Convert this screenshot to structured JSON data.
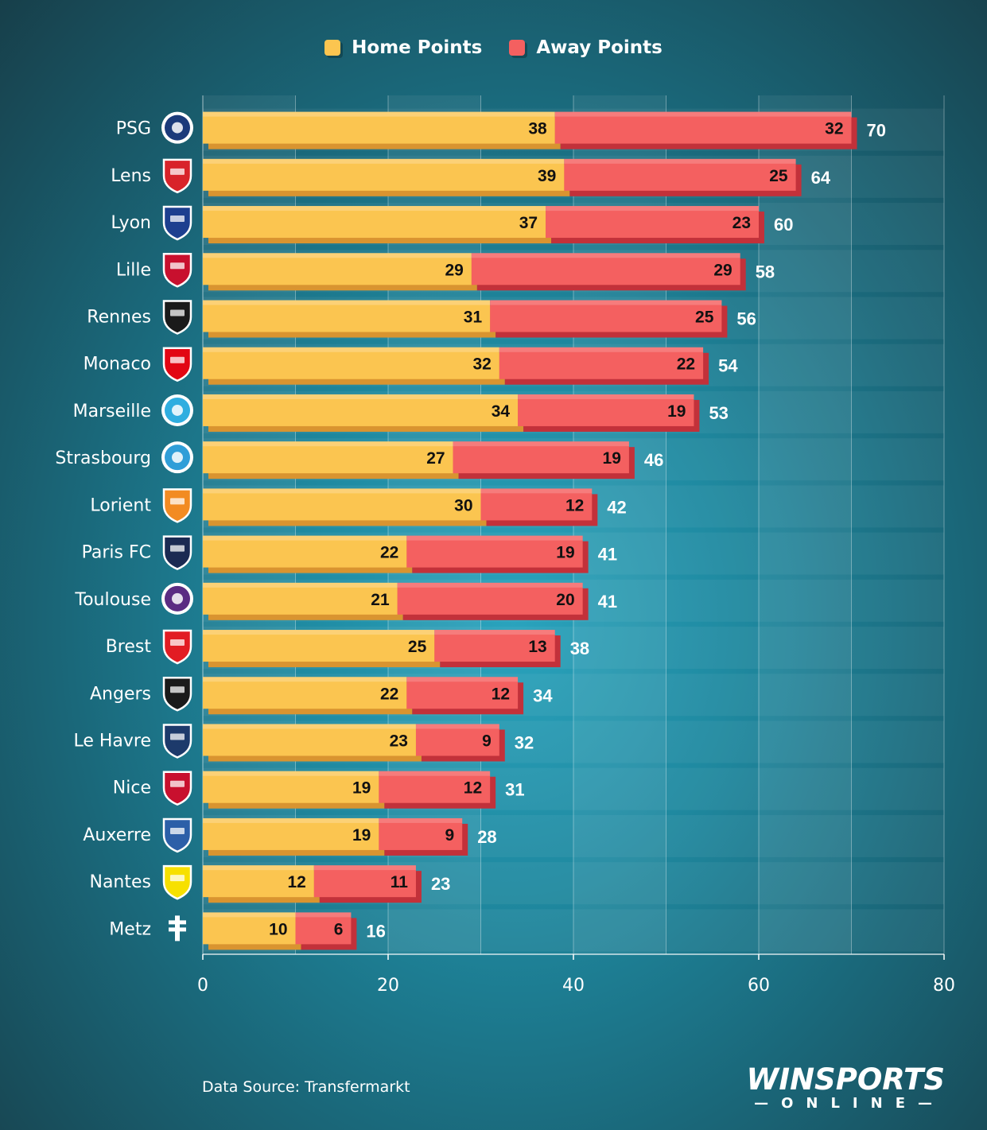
{
  "legend": {
    "home_label": "Home Points",
    "away_label": "Away Points"
  },
  "source": "Data Source: Transfermarkt",
  "brand": {
    "main": "WINSPORTS",
    "sub": "—ONLINE—"
  },
  "colors": {
    "home": "#fbc550",
    "home_shade": "#d99430",
    "away": "#f46060",
    "away_shade": "#c2313a",
    "text_dark": "#111111",
    "text_light": "#ffffff"
  },
  "chart_data": {
    "type": "bar",
    "orientation": "horizontal",
    "stacked": true,
    "categories": [
      "PSG",
      "Lens",
      "Lyon",
      "Lille",
      "Rennes",
      "Monaco",
      "Marseille",
      "Strasbourg",
      "Lorient",
      "Paris FC",
      "Toulouse",
      "Brest",
      "Angers",
      "Le Havre",
      "Nice",
      "Auxerre",
      "Nantes",
      "Metz"
    ],
    "series": [
      {
        "name": "Home Points",
        "values": [
          38,
          39,
          37,
          29,
          31,
          32,
          34,
          27,
          30,
          22,
          21,
          25,
          22,
          23,
          19,
          19,
          12,
          10
        ]
      },
      {
        "name": "Away Points",
        "values": [
          32,
          25,
          23,
          29,
          25,
          22,
          19,
          19,
          12,
          19,
          20,
          13,
          12,
          9,
          12,
          9,
          11,
          6
        ]
      }
    ],
    "totals": [
      70,
      64,
      60,
      58,
      56,
      54,
      53,
      46,
      42,
      41,
      41,
      38,
      34,
      32,
      31,
      28,
      23,
      16
    ],
    "xlim": [
      0,
      80
    ],
    "xticks": [
      "0",
      "20",
      "40",
      "60",
      "80"
    ],
    "grid": true,
    "legend_position": "top-center",
    "team_crest_icons": [
      "psg-crest-icon",
      "lens-crest-icon",
      "lyon-crest-icon",
      "lille-crest-icon",
      "rennes-crest-icon",
      "monaco-crest-icon",
      "marseille-crest-icon",
      "strasbourg-crest-icon",
      "lorient-crest-icon",
      "paris-fc-crest-icon",
      "toulouse-crest-icon",
      "brest-crest-icon",
      "angers-crest-icon",
      "le-havre-crest-icon",
      "nice-crest-icon",
      "auxerre-crest-icon",
      "nantes-crest-icon",
      "metz-crest-icon"
    ],
    "crest_colors": [
      "#1b3a7a",
      "#d8232a",
      "#1d3f8f",
      "#c8102e",
      "#1a1a1a",
      "#e20613",
      "#2faee0",
      "#2f9ed8",
      "#f28b22",
      "#1b2a52",
      "#5b2c83",
      "#e21c23",
      "#1a1a1a",
      "#1d3a6b",
      "#c8102e",
      "#2c5fa8",
      "#f7e000",
      "#ffffff"
    ]
  }
}
